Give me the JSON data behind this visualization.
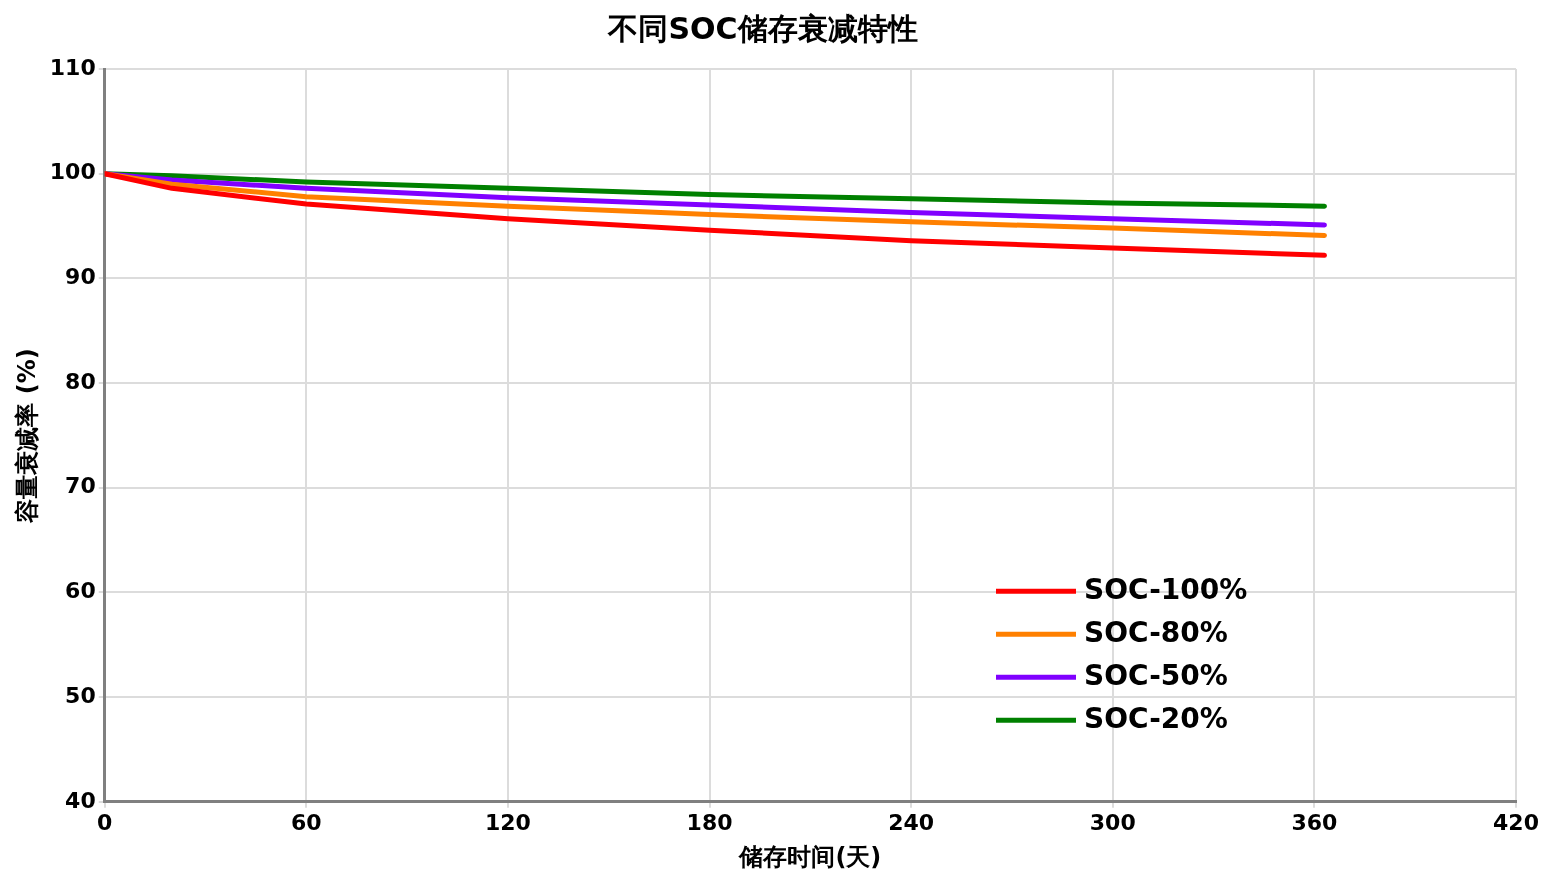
{
  "chart_data": {
    "type": "line",
    "title": "不同SOC储存衰减特性",
    "xlabel": "储存时间(天)",
    "ylabel": "容量衰减率 (%)",
    "x": [
      0,
      20,
      60,
      120,
      180,
      240,
      300,
      363
    ],
    "series": [
      {
        "name": "SOC-100%",
        "color": "#ff0000",
        "values": [
          100,
          98.6,
          97.1,
          95.7,
          94.6,
          93.6,
          92.9,
          92.2
        ]
      },
      {
        "name": "SOC-80%",
        "color": "#ff8000",
        "values": [
          100,
          99.0,
          97.8,
          96.9,
          96.1,
          95.4,
          94.8,
          94.1
        ]
      },
      {
        "name": "SOC-50%",
        "color": "#8000ff",
        "values": [
          100,
          99.4,
          98.6,
          97.7,
          97.0,
          96.3,
          95.7,
          95.1
        ]
      },
      {
        "name": "SOC-20%",
        "color": "#008000",
        "values": [
          100,
          99.8,
          99.2,
          98.6,
          98.0,
          97.6,
          97.2,
          96.9
        ]
      }
    ],
    "xlim": [
      0,
      420
    ],
    "xticks": [
      0,
      60,
      120,
      180,
      240,
      300,
      360,
      420
    ],
    "ylim": [
      40,
      110
    ],
    "yticks": [
      40,
      50,
      60,
      70,
      80,
      90,
      100,
      110
    ],
    "grid": true,
    "legend": "bottom right",
    "marker": "none",
    "line_style": "solid"
  }
}
